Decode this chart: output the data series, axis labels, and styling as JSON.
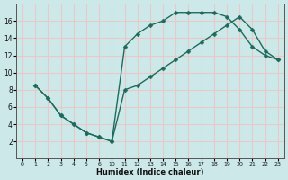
{
  "xlabel": "Humidex (Indice chaleur)",
  "bg_color": "#cce8e8",
  "line_color": "#1e6b5e",
  "grid_color": "#e8c8c8",
  "upper_humidex": [
    1,
    2,
    3,
    4,
    5,
    6,
    10,
    11,
    12,
    13,
    14,
    15,
    16,
    17,
    18,
    19,
    20,
    21,
    22,
    23
  ],
  "upper_y": [
    8.5,
    7.0,
    5.0,
    4.0,
    3.0,
    2.5,
    2.0,
    13.0,
    14.5,
    15.5,
    16.0,
    17.0,
    17.0,
    17.0,
    17.0,
    16.5,
    15.0,
    13.0,
    12.0,
    11.5
  ],
  "lower_humidex": [
    1,
    2,
    3,
    4,
    5,
    6,
    10,
    11,
    12,
    13,
    14,
    15,
    16,
    17,
    18,
    19,
    20,
    21,
    22,
    23
  ],
  "lower_y": [
    8.5,
    7.0,
    5.0,
    4.0,
    3.0,
    2.5,
    2.0,
    8.0,
    8.5,
    9.5,
    10.5,
    11.5,
    12.5,
    13.5,
    14.5,
    15.5,
    16.5,
    15.0,
    12.5,
    11.5
  ],
  "x_labels": [
    0,
    1,
    2,
    3,
    4,
    5,
    6,
    10,
    11,
    12,
    13,
    14,
    15,
    16,
    17,
    18,
    19,
    20,
    21,
    22,
    23
  ],
  "x_values": [
    0,
    1,
    2,
    3,
    4,
    5,
    6,
    7,
    8,
    9,
    10,
    11,
    12,
    13,
    14,
    15,
    16,
    17,
    18,
    19,
    20
  ],
  "ylim": [
    0,
    18
  ],
  "yticks": [
    2,
    4,
    6,
    8,
    10,
    12,
    14,
    16
  ],
  "marker_size": 2.5,
  "line_width": 1.0
}
